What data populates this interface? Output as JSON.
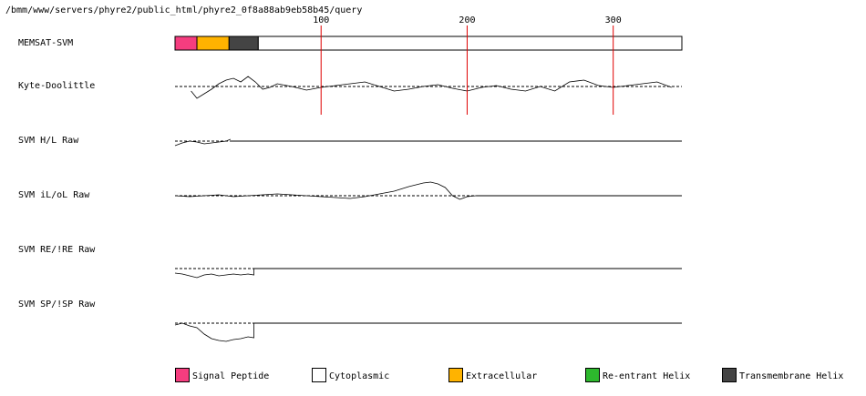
{
  "url": "/bmm/www/servers/phyre2/public_html/phyre2_0f8a88ab9eb58b45/query",
  "xlim": [
    0,
    347
  ],
  "xticks": [
    100,
    200,
    300
  ],
  "memsat": {
    "label": "MEMSAT-SVM",
    "segments": [
      {
        "kind": "Signal Peptide",
        "start": 0,
        "end": 15
      },
      {
        "kind": "Extracellular",
        "start": 15,
        "end": 37
      },
      {
        "kind": "Transmembrane Helix",
        "start": 37,
        "end": 57
      },
      {
        "kind": "Cytoplasmic",
        "start": 57,
        "end": 347
      }
    ]
  },
  "profiles": [
    {
      "label": "Kyte-Doolittle",
      "dashed": true,
      "x": [
        11,
        15,
        20,
        25,
        30,
        35,
        40,
        45,
        50,
        55,
        60,
        65,
        70,
        80,
        90,
        100,
        110,
        120,
        130,
        140,
        150,
        160,
        170,
        180,
        190,
        200,
        210,
        220,
        230,
        240,
        250,
        260,
        270,
        280,
        290,
        300,
        310,
        320,
        330,
        340
      ],
      "values": [
        -5,
        -13,
        -8,
        -3,
        3,
        7,
        9,
        5,
        11,
        5,
        -3,
        -1,
        3,
        0,
        -4,
        -1,
        1,
        3,
        5,
        0,
        -5,
        -3,
        0,
        2,
        -2,
        -5,
        -1,
        1,
        -3,
        -5,
        0,
        -5,
        5,
        7,
        1,
        -1,
        1,
        3,
        5,
        -1
      ]
    },
    {
      "label": "SVM H/L Raw",
      "dashed": true,
      "x": [
        0,
        5,
        10,
        15,
        20,
        25,
        30,
        35,
        38
      ],
      "values": [
        -5,
        -2,
        0,
        -1,
        -3,
        -2,
        -1,
        0,
        2
      ]
    },
    {
      "label": "SVM iL/oL Raw",
      "dashed": true,
      "x": [
        0,
        10,
        20,
        30,
        40,
        50,
        60,
        70,
        80,
        90,
        100,
        110,
        120,
        130,
        140,
        150,
        160,
        170,
        175,
        180,
        185,
        190,
        195,
        200,
        206
      ],
      "values": [
        0,
        -1,
        0,
        1,
        -1,
        0,
        1,
        2,
        1,
        0,
        -1,
        -2,
        -3,
        -1,
        2,
        5,
        10,
        14,
        15,
        13,
        9,
        0,
        -4,
        -1,
        0
      ]
    },
    {
      "label": "SVM RE/!RE Raw",
      "dashed": true,
      "x": [
        0,
        5,
        10,
        15,
        20,
        25,
        30,
        35,
        40,
        45,
        50,
        54
      ],
      "values": [
        -5,
        -6,
        -8,
        -10,
        -7,
        -6,
        -8,
        -7,
        -6,
        -7,
        -6,
        -7
      ]
    },
    {
      "label": "SVM SP/!SP Raw",
      "dashed": true,
      "x": [
        0,
        5,
        10,
        15,
        20,
        25,
        30,
        35,
        40,
        45,
        50,
        54
      ],
      "values": [
        -2,
        0,
        -3,
        -5,
        -12,
        -17,
        -19,
        -20,
        -18,
        -17,
        -15,
        -16
      ]
    }
  ],
  "legend": [
    {
      "label": "Signal Peptide",
      "color": "#f53d7f"
    },
    {
      "label": "Cytoplasmic",
      "color": "#ffffff"
    },
    {
      "label": "Extracellular",
      "color": "#ffb300"
    },
    {
      "label": "Re-entrant Helix",
      "color": "#2db82d"
    },
    {
      "label": "Transmembrane Helix",
      "color": "#444444"
    }
  ]
}
